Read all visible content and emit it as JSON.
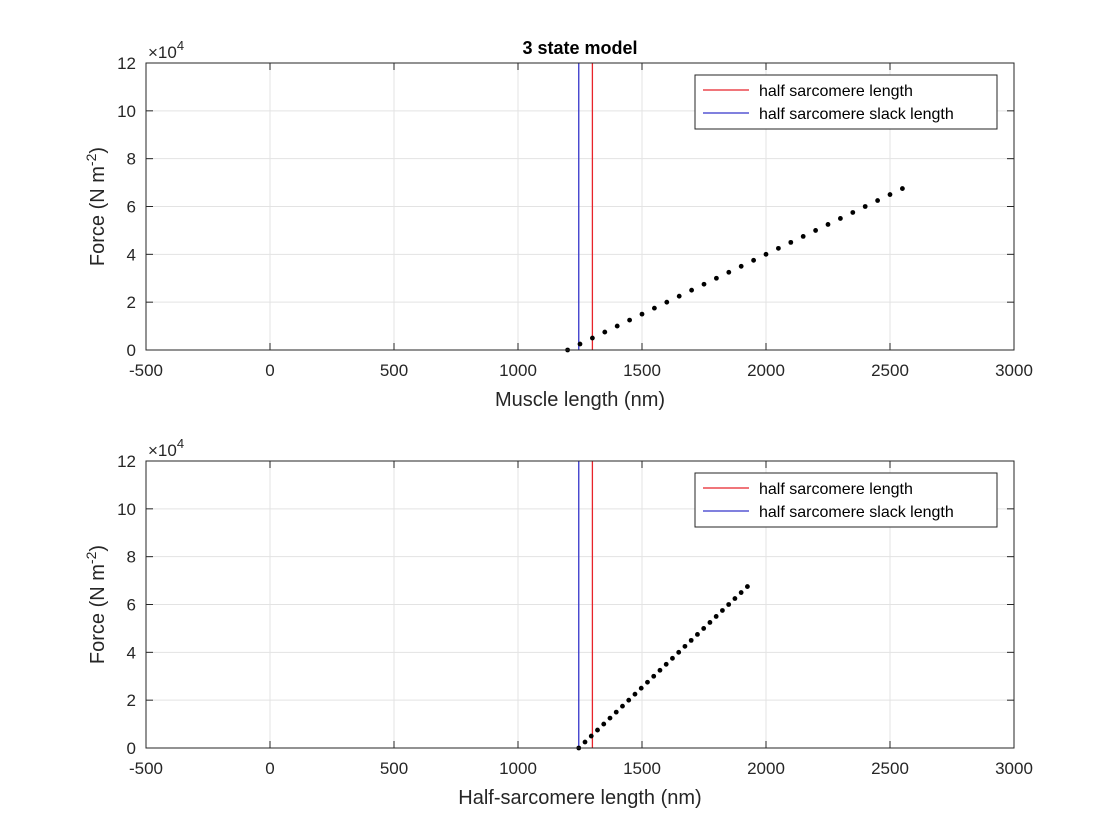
{
  "chart_data": [
    {
      "type": "scatter",
      "title": "3 state model",
      "xlabel": "Muscle length (nm)",
      "ylabel": {
        "main": "Force (N m",
        "sup": "-2",
        "close": ")"
      },
      "xlim": [
        -500,
        3000
      ],
      "ylim": [
        0,
        120000
      ],
      "xticks": [
        -500,
        0,
        500,
        1000,
        1500,
        2000,
        2500,
        3000
      ],
      "yticks": [
        0,
        20000,
        40000,
        60000,
        80000,
        100000,
        120000
      ],
      "ytick_labels": [
        "0",
        "2",
        "4",
        "6",
        "8",
        "10",
        "12"
      ],
      "y_multiplier": {
        "base": "×10",
        "exp": "4"
      },
      "grid": true,
      "legend_position": "top-right",
      "vlines": [
        {
          "name": "half sarcomere length",
          "x": 1300,
          "color": "#e8232a"
        },
        {
          "name": "half sarcomere slack length",
          "x": 1245,
          "color": "#3434c9"
        }
      ],
      "points": {
        "color": "#000000",
        "x_start": 1200,
        "x_end": 2550,
        "y_start": 0,
        "y_end": 67500,
        "count": 28
      }
    },
    {
      "type": "scatter",
      "title": "",
      "xlabel": "Half-sarcomere length (nm)",
      "ylabel": {
        "main": "Force (N m",
        "sup": "-2",
        "close": ")"
      },
      "xlim": [
        -500,
        3000
      ],
      "ylim": [
        0,
        120000
      ],
      "xticks": [
        -500,
        0,
        500,
        1000,
        1500,
        2000,
        2500,
        3000
      ],
      "yticks": [
        0,
        20000,
        40000,
        60000,
        80000,
        100000,
        120000
      ],
      "ytick_labels": [
        "0",
        "2",
        "4",
        "6",
        "8",
        "10",
        "12"
      ],
      "y_multiplier": {
        "base": "×10",
        "exp": "4"
      },
      "grid": true,
      "legend_position": "top-right",
      "vlines": [
        {
          "name": "half sarcomere length",
          "x": 1300,
          "color": "#e8232a"
        },
        {
          "name": "half sarcomere slack length",
          "x": 1245,
          "color": "#3434c9"
        }
      ],
      "points": {
        "color": "#000000",
        "x_start": 1245,
        "x_end": 1925,
        "y_start": 0,
        "y_end": 67500,
        "count": 28
      }
    }
  ]
}
